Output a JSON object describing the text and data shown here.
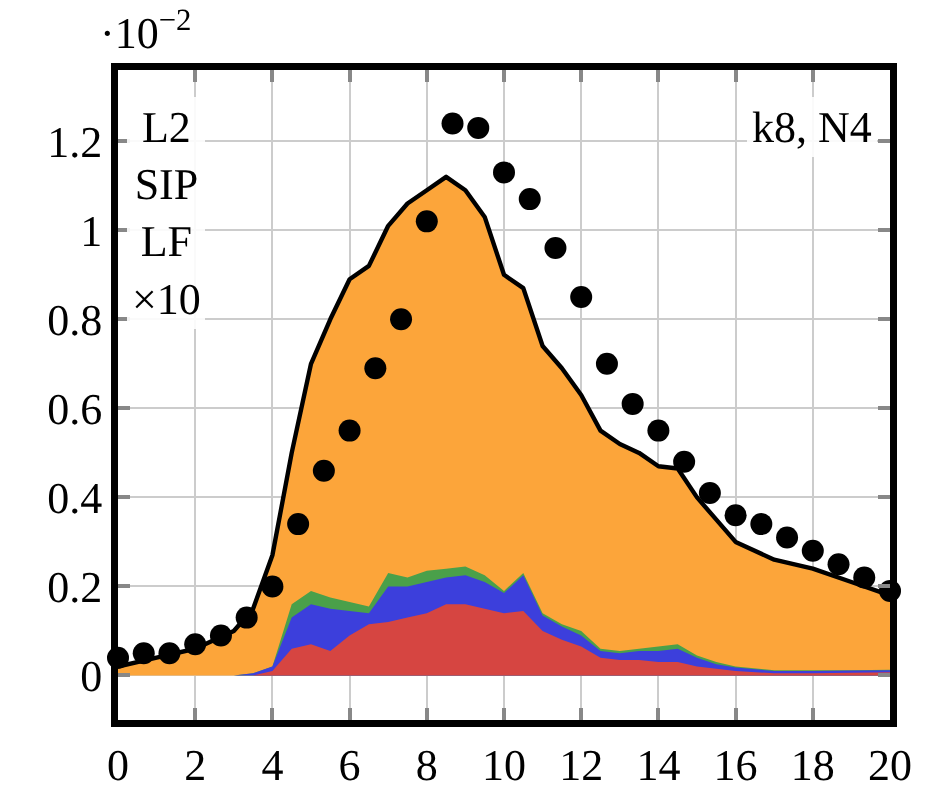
{
  "chart_data": {
    "type": "area",
    "grid": true,
    "x": [
      0,
      1,
      2,
      3,
      3.5,
      4,
      4.5,
      5,
      5.5,
      6,
      6.5,
      7,
      7.5,
      8,
      8.5,
      9,
      9.5,
      10,
      10.5,
      11,
      11.5,
      12,
      12.5,
      13,
      13.5,
      14,
      14.5,
      15,
      15.5,
      16,
      17,
      18,
      19,
      20
    ],
    "series": [
      {
        "color": "#fca53a",
        "values": [
          0.02,
          0.04,
          0.06,
          0.1,
          0.15,
          0.27,
          0.5,
          0.7,
          0.8,
          0.89,
          0.92,
          1.01,
          1.06,
          1.09,
          1.12,
          1.09,
          1.03,
          0.9,
          0.87,
          0.74,
          0.69,
          0.63,
          0.55,
          0.52,
          0.5,
          0.47,
          0.465,
          0.4,
          0.35,
          0.3,
          0.26,
          0.24,
          0.21,
          0.18
        ]
      },
      {
        "color": "#4aa04a",
        "values": [
          0,
          0,
          0,
          0,
          0.005,
          0.02,
          0.16,
          0.19,
          0.175,
          0.165,
          0.155,
          0.23,
          0.22,
          0.235,
          0.24,
          0.245,
          0.225,
          0.19,
          0.23,
          0.14,
          0.115,
          0.1,
          0.06,
          0.055,
          0.06,
          0.065,
          0.07,
          0.045,
          0.03,
          0.02,
          0.012,
          0.012,
          0.012,
          0.013
        ]
      },
      {
        "color": "#3c3fdc",
        "values": [
          0,
          0,
          0,
          0,
          0.005,
          0.02,
          0.13,
          0.16,
          0.15,
          0.145,
          0.14,
          0.2,
          0.2,
          0.21,
          0.22,
          0.225,
          0.21,
          0.185,
          0.225,
          0.135,
          0.11,
          0.09,
          0.055,
          0.05,
          0.055,
          0.055,
          0.06,
          0.04,
          0.025,
          0.018,
          0.01,
          0.01,
          0.011,
          0.012
        ]
      },
      {
        "color": "#d64541",
        "values": [
          0,
          0,
          0,
          0,
          0,
          0.01,
          0.06,
          0.07,
          0.055,
          0.09,
          0.115,
          0.12,
          0.13,
          0.14,
          0.16,
          0.16,
          0.15,
          0.14,
          0.145,
          0.1,
          0.08,
          0.065,
          0.04,
          0.035,
          0.035,
          0.03,
          0.03,
          0.02,
          0.015,
          0.01,
          0.005,
          0.005,
          0.006,
          0.007
        ]
      },
      {
        "type": "scatter",
        "color": "#000000",
        "marker": "circle",
        "x": [
          0,
          0.667,
          1.333,
          2,
          2.667,
          3.333,
          4,
          4.667,
          5.333,
          6,
          6.667,
          7.333,
          8,
          8.667,
          9.333,
          10,
          10.667,
          11.333,
          12,
          12.667,
          13.333,
          14,
          14.667,
          15.333,
          16,
          16.667,
          17.333,
          18,
          18.667,
          19.333,
          20
        ],
        "values": [
          0.04,
          0.05,
          0.05,
          0.07,
          0.09,
          0.13,
          0.2,
          0.34,
          0.46,
          0.55,
          0.69,
          0.8,
          1.02,
          1.24,
          1.23,
          1.13,
          1.07,
          0.96,
          0.85,
          0.7,
          0.61,
          0.55,
          0.48,
          0.41,
          0.36,
          0.34,
          0.31,
          0.28,
          0.25,
          0.22,
          0.19
        ]
      }
    ],
    "xlim": [
      0,
      20
    ],
    "xticks": [
      0,
      2,
      4,
      6,
      8,
      10,
      12,
      14,
      16,
      18,
      20
    ],
    "ylim": [
      -0.1,
      1.36
    ],
    "yticks": [
      0,
      0.2,
      0.4,
      0.6,
      0.8,
      1,
      1.2
    ],
    "annotations": [
      "L2\nSIP\nLF\n×10",
      "k8, N4",
      "·10$^{−2}$"
    ]
  }
}
